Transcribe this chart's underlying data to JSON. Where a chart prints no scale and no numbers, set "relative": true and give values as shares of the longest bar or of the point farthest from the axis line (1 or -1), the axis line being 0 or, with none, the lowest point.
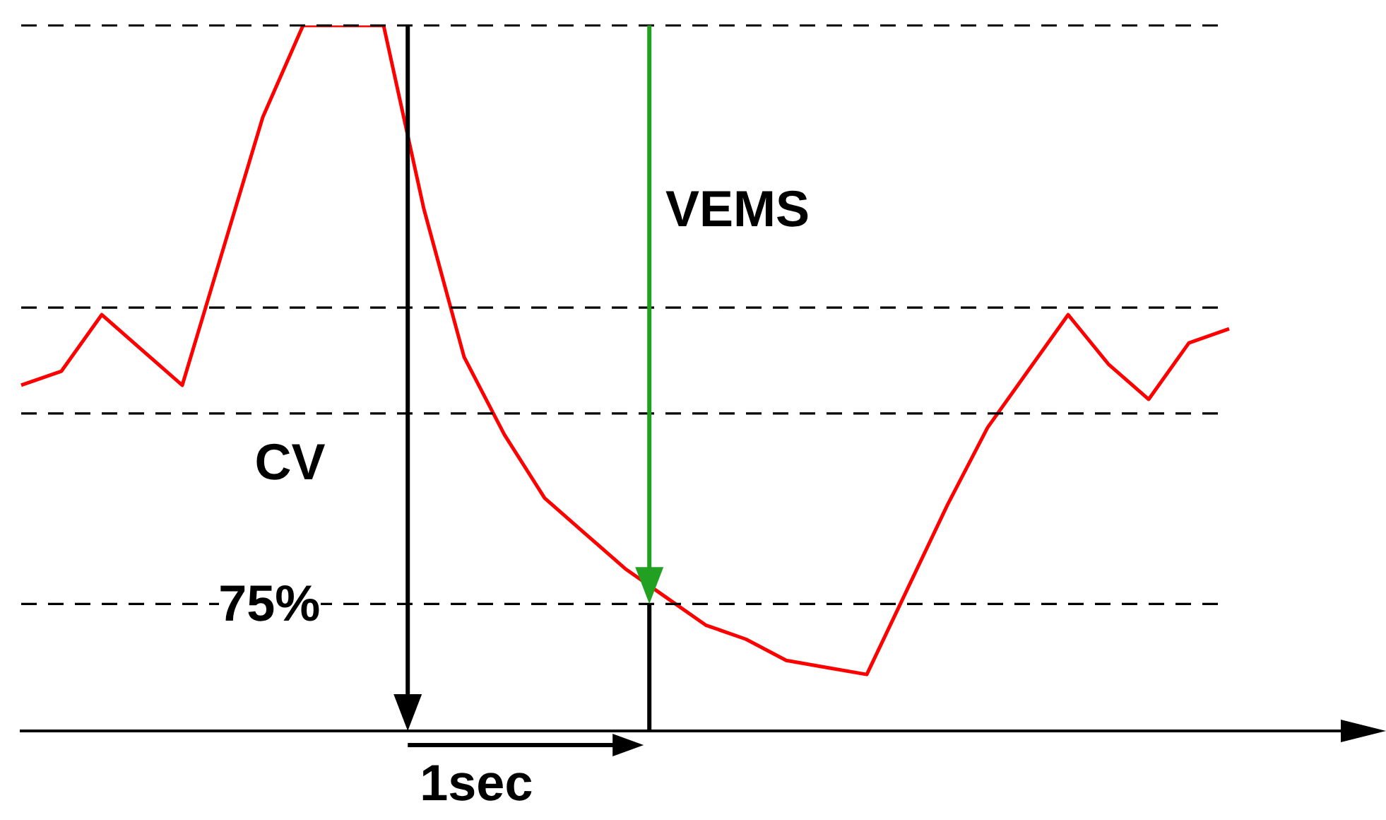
{
  "chart_data": {
    "type": "line",
    "relative": true,
    "tick_labels": false,
    "legend": false,
    "categories": [
      null,
      null,
      null,
      null,
      null,
      null,
      null,
      null,
      null,
      null,
      null,
      null,
      null,
      null,
      null,
      null,
      null,
      null,
      null,
      null,
      null,
      null,
      null,
      null,
      null,
      null,
      null,
      null,
      null,
      null,
      null
    ],
    "series": [
      {
        "color": "#ff0000",
        "values": [
          0.49,
          0.51,
          0.59,
          0.54,
          0.49,
          0.68,
          0.87,
          1,
          1,
          1,
          0.74,
          0.53,
          0.42,
          0.33,
          0.28,
          0.23,
          0.19,
          0.15,
          0.13,
          0.1,
          0.09,
          0.08,
          0.2,
          0.32,
          0.43,
          0.51,
          0.59,
          0.52,
          0.47,
          0.55,
          0.57
        ]
      }
    ],
    "ref_lines": [
      {
        "axis": "y",
        "value": 1,
        "line_style": "dashed"
      },
      {
        "axis": "y",
        "value": 0.6,
        "line_style": "dashed"
      },
      {
        "axis": "y",
        "value": 0.45,
        "line_style": "dashed"
      },
      {
        "axis": "y",
        "value": 0.18,
        "line_style": "dashed"
      }
    ],
    "annotations": [
      "VEMS",
      "CV",
      "1sec",
      "75%"
    ]
  }
}
